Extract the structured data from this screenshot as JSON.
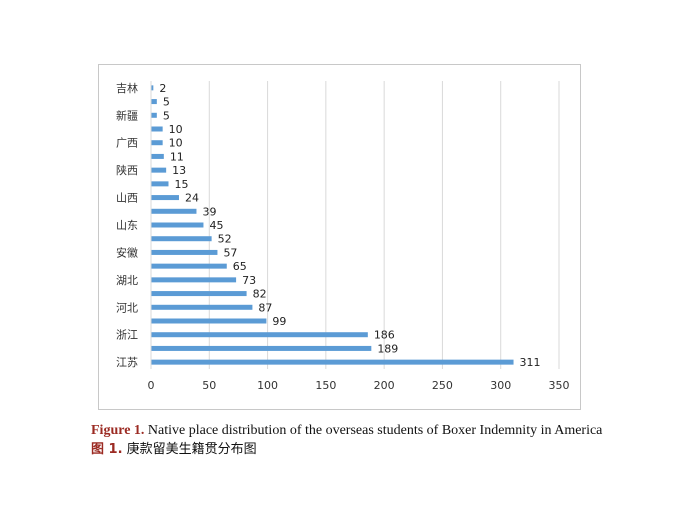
{
  "chart_data": {
    "type": "bar",
    "orientation": "horizontal",
    "categories": [
      "江苏",
      "",
      "浙江",
      "",
      "河北",
      "",
      "湖北",
      "",
      "安徽",
      "",
      "山东",
      "",
      "山西",
      "",
      "陕西",
      "",
      "广西",
      "",
      "新疆",
      "",
      "吉林"
    ],
    "values": [
      311,
      189,
      186,
      99,
      87,
      82,
      73,
      65,
      57,
      52,
      45,
      39,
      24,
      15,
      13,
      11,
      10,
      10,
      5,
      5,
      2
    ],
    "xlim": [
      0,
      350
    ],
    "xticks": [
      "0",
      "50",
      "100",
      "150",
      "200",
      "250",
      "300",
      "350"
    ],
    "grid": true,
    "bar_color": "#5b9bd5"
  },
  "caption": {
    "en_label": "Figure 1.",
    "en_text": "Native place distribution of the overseas students of Boxer Indemnity in America",
    "zh_label": "图 1.",
    "zh_text": "庚款留美生籍贯分布图"
  },
  "colors": {
    "caption_label": "#9b2a22"
  }
}
